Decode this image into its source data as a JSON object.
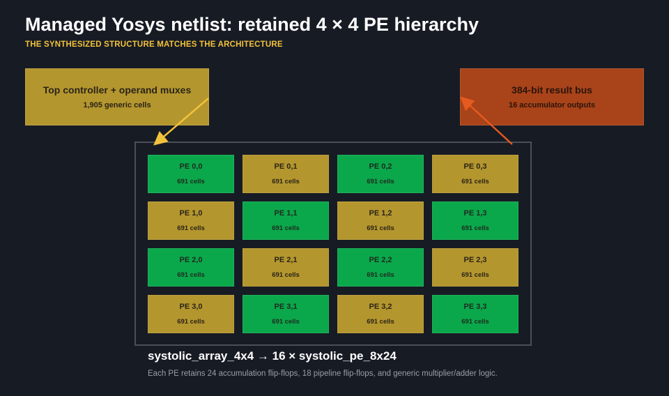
{
  "header": {
    "title": "Managed Yosys netlist: retained 4 × 4 PE hierarchy",
    "subtitle": "THE SYNTHESIZED STRUCTURE MATCHES THE ARCHITECTURE"
  },
  "controller": {
    "title": "Top controller + operand muxes",
    "detail": "1,905 generic cells",
    "color": "#b4962e"
  },
  "result_bus": {
    "title": "384-bit result bus",
    "detail": "16 accumulator outputs",
    "color": "#a8431a"
  },
  "pes": [
    {
      "name": "PE 0,0",
      "cells": "691 cells",
      "color": "green"
    },
    {
      "name": "PE 0,1",
      "cells": "691 cells",
      "color": "gold"
    },
    {
      "name": "PE 0,2",
      "cells": "691 cells",
      "color": "green"
    },
    {
      "name": "PE 0,3",
      "cells": "691 cells",
      "color": "gold"
    },
    {
      "name": "PE 1,0",
      "cells": "691 cells",
      "color": "gold"
    },
    {
      "name": "PE 1,1",
      "cells": "691 cells",
      "color": "green"
    },
    {
      "name": "PE 1,2",
      "cells": "691 cells",
      "color": "gold"
    },
    {
      "name": "PE 1,3",
      "cells": "691 cells",
      "color": "green"
    },
    {
      "name": "PE 2,0",
      "cells": "691 cells",
      "color": "green"
    },
    {
      "name": "PE 2,1",
      "cells": "691 cells",
      "color": "gold"
    },
    {
      "name": "PE 2,2",
      "cells": "691 cells",
      "color": "green"
    },
    {
      "name": "PE 2,3",
      "cells": "691 cells",
      "color": "gold"
    },
    {
      "name": "PE 3,0",
      "cells": "691 cells",
      "color": "gold"
    },
    {
      "name": "PE 3,1",
      "cells": "691 cells",
      "color": "green"
    },
    {
      "name": "PE 3,2",
      "cells": "691 cells",
      "color": "gold"
    },
    {
      "name": "PE 3,3",
      "cells": "691 cells",
      "color": "green"
    }
  ],
  "array": {
    "label": "systolic_array_4x4 → 16 × systolic_pe_8x24",
    "note": "Each PE retains 24 accumulation flip-flops, 18 pipeline flip-flops, and generic multiplier/adder logic."
  },
  "colors": {
    "pe_green": "#0aa84b",
    "pe_gold": "#b4962e",
    "arrow_controller": "#f2c23a",
    "arrow_result": "#e55a1e"
  }
}
